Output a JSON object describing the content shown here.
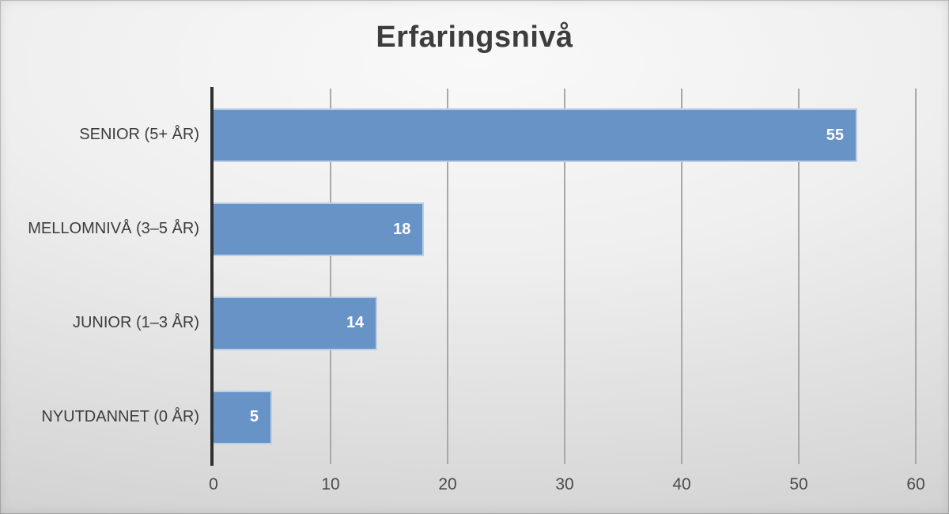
{
  "chart_data": {
    "type": "bar",
    "orientation": "horizontal",
    "title": "Erfaringsnivå",
    "categories": [
      "SENIOR (5+ ÅR)",
      "MELLOMNIVÅ (3–5 ÅR)",
      "JUNIOR (1–3 ÅR)",
      "NYUTDANNET (0 ÅR)"
    ],
    "values": [
      55,
      18,
      14,
      5
    ],
    "xticks": [
      0,
      10,
      20,
      30,
      40,
      50,
      60
    ],
    "xlim": [
      0,
      60
    ],
    "xlabel": "",
    "ylabel": "",
    "grid": "vertical gridlines at each x tick",
    "legend_position": "none",
    "data_labels": "inside end, white bold",
    "colors": {
      "bar_fill": "#6793c7",
      "bar_outline": "rgba(255,255,255,0.55)",
      "gridline": "#a8a8a8",
      "axis_line": "#2f2f2f",
      "title_text": "#3d3d3d",
      "category_text": "#3d3d3d",
      "tick_text": "#4a4a4a",
      "background_center": "#f9f9f9",
      "background_edge": "#cbcbcb"
    }
  }
}
